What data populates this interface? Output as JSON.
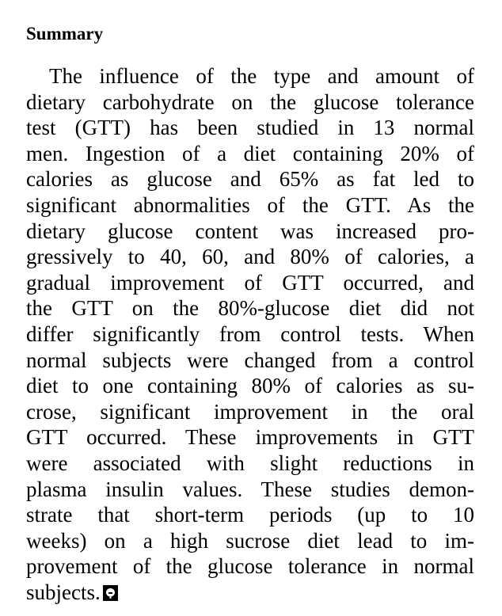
{
  "section": {
    "heading": "Summary"
  },
  "abstract": {
    "lines": [
      "The influence of the type and amount of",
      "dietary carbohydrate on the glucose tolerance",
      "test (GTT) has been studied in 13 normal",
      "men. Ingestion of a diet containing 20% of",
      "calories as glucose and 65% as fat led to",
      "significant abnormalities of the GTT. As the",
      "dietary glucose content was increased pro-",
      "gressively to 40, 60, and 80% of calories, a",
      "gradual improvement of GTT occurred, and",
      "the GTT on the 80%-glucose diet did not",
      "differ significantly from control tests. When",
      "normal subjects were changed from a control",
      "diet to one containing 80% of calories as su-",
      "crose, significant improvement in the oral",
      "GTT occurred. These improvements in GTT",
      "were associated with slight reductions in",
      "plasma insulin values. These studies demon-",
      "strate that short-term periods (up to 10",
      "weeks) on a high sucrose diet lead to im-",
      "provement of the glucose tolerance in normal",
      "subjects."
    ]
  },
  "end_mark": {
    "icon": "journal-end-mark-icon",
    "color": "#000000"
  }
}
